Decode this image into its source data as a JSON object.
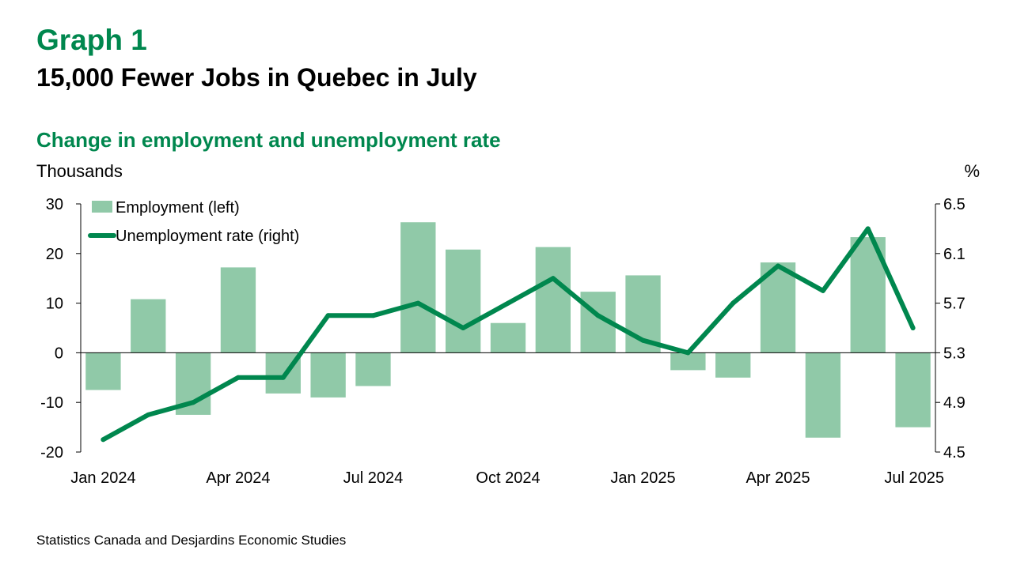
{
  "header": {
    "graph_label": "Graph 1",
    "title": "15,000 Fewer Jobs in Quebec in July"
  },
  "colors": {
    "accent": "#00874E",
    "bar": "#90C9A8",
    "line": "#00874E"
  },
  "chart_data": {
    "type": "bar",
    "title": "Change in employment and unemployment rate",
    "ylabel": "Thousands",
    "y2label": "%",
    "categories": [
      "Jan 2024",
      "Feb 2024",
      "Mar 2024",
      "Apr 2024",
      "May 2024",
      "Jun 2024",
      "Jul 2024",
      "Aug 2024",
      "Sep 2024",
      "Oct 2024",
      "Nov 2024",
      "Dec 2024",
      "Jan 2025",
      "Feb 2025",
      "Mar 2025",
      "Apr 2025",
      "May 2025",
      "Jun 2025",
      "Jul 2025"
    ],
    "x_tick_labels": [
      "Jan 2024",
      "Apr 2024",
      "Jul 2024",
      "Oct 2024",
      "Jan 2025",
      "Apr 2025",
      "Jul 2025"
    ],
    "x_tick_every": 3,
    "ylim": [
      -20,
      30
    ],
    "y_ticks": [
      "30",
      "20",
      "10",
      "0",
      "-10",
      "-20"
    ],
    "y2lim": [
      4.5,
      6.5
    ],
    "y2_ticks": [
      "6.5",
      "6.1",
      "5.7",
      "5.3",
      "4.9",
      "4.5"
    ],
    "legend_position": "top-left",
    "series": [
      {
        "name": "Employment (left)",
        "type": "bar",
        "axis": "left",
        "values": [
          -7.5,
          10.8,
          -12.5,
          17.2,
          -8.2,
          -9.0,
          -6.7,
          26.3,
          20.8,
          6.0,
          21.3,
          12.3,
          15.6,
          -3.5,
          -5.0,
          18.2,
          -17.1,
          23.3,
          -15.0
        ]
      },
      {
        "name": "Unemployment rate (right)",
        "type": "line",
        "axis": "right",
        "values": [
          4.6,
          4.8,
          4.9,
          5.1,
          5.1,
          5.6,
          5.6,
          5.7,
          5.5,
          5.7,
          5.9,
          5.6,
          5.4,
          5.3,
          5.7,
          6.0,
          5.8,
          6.3,
          5.5
        ]
      }
    ]
  },
  "footer": {
    "source": "Statistics Canada and Desjardins Economic Studies"
  }
}
